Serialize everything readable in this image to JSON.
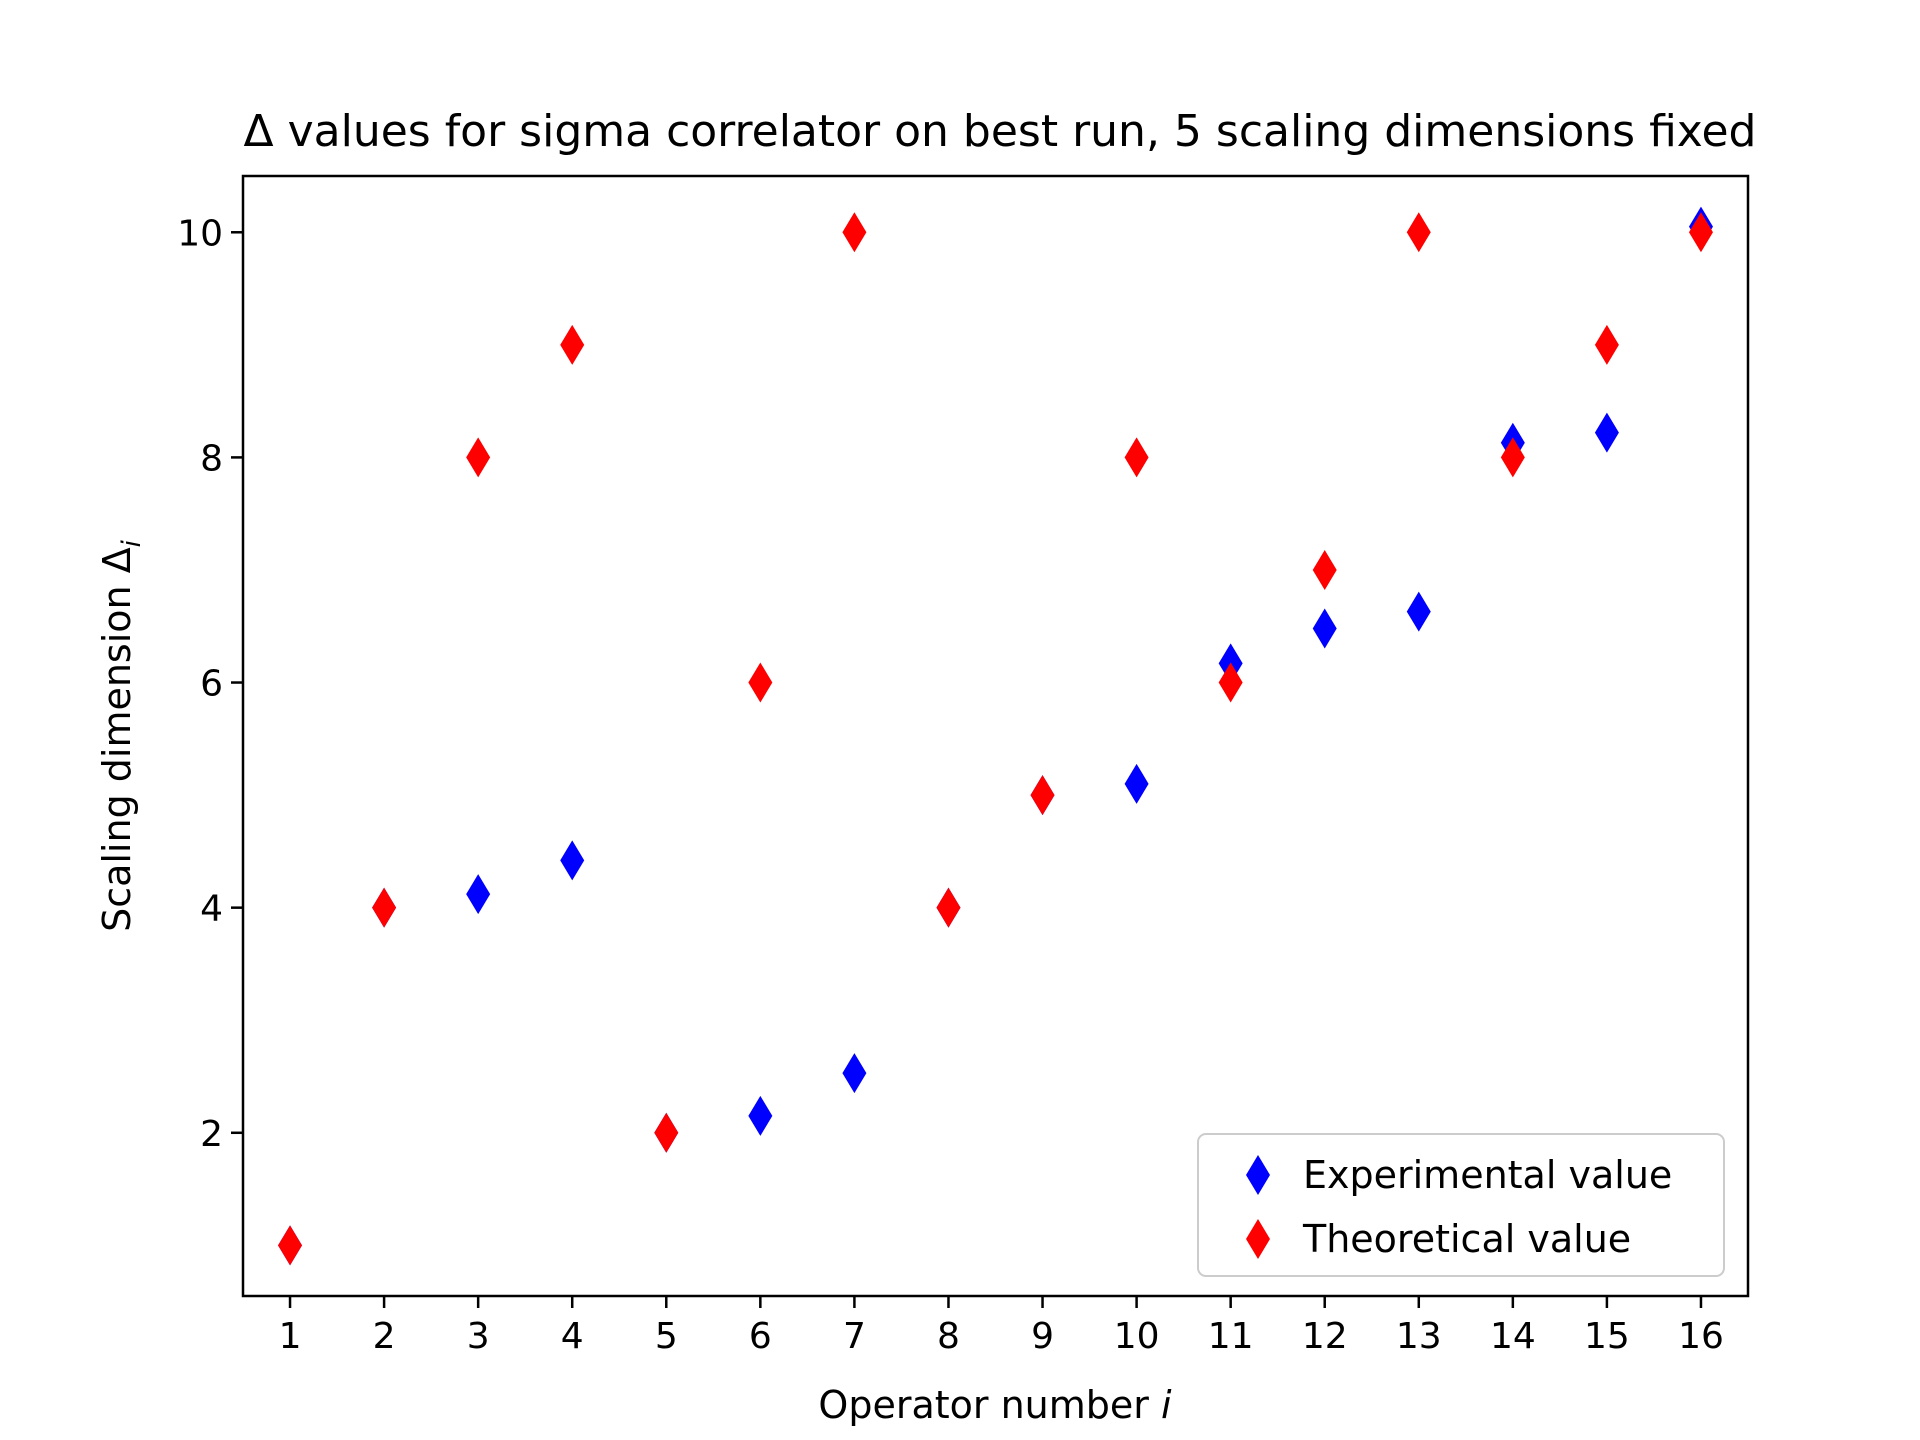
{
  "chart_data": {
    "type": "scatter",
    "title": "Δ values for sigma correlator on best run, 5 scaling dimensions fixed",
    "xlabel": "Operator number",
    "xlabel_var": "i",
    "ylabel": "Scaling dimension Δ",
    "ylabel_sub": "i",
    "xlim": [
      0.5,
      16.5
    ],
    "ylim": [
      0.55,
      10.5
    ],
    "x_ticks": [
      1,
      2,
      3,
      4,
      5,
      6,
      7,
      8,
      9,
      10,
      11,
      12,
      13,
      14,
      15,
      16
    ],
    "y_ticks": [
      2,
      4,
      6,
      8,
      10
    ],
    "marker": "diamond",
    "grid": false,
    "legend_position": "lower-right",
    "series": [
      {
        "name": "Experimental value",
        "color": "#0000ff",
        "x": [
          1,
          2,
          3,
          4,
          5,
          6,
          7,
          8,
          9,
          10,
          11,
          12,
          13,
          14,
          15,
          16
        ],
        "y": [
          1,
          4,
          4.12,
          4.42,
          2,
          2.15,
          2.53,
          4,
          5,
          5.1,
          6.17,
          6.48,
          6.63,
          8.13,
          8.22,
          10.05
        ]
      },
      {
        "name": "Theoretical value",
        "color": "#ff0000",
        "x": [
          1,
          2,
          3,
          4,
          5,
          6,
          7,
          8,
          9,
          10,
          11,
          12,
          13,
          14,
          15,
          16
        ],
        "y": [
          1,
          4,
          8,
          9,
          2,
          6,
          10,
          4,
          5,
          8,
          6,
          7,
          10,
          8,
          9,
          10
        ]
      }
    ]
  }
}
